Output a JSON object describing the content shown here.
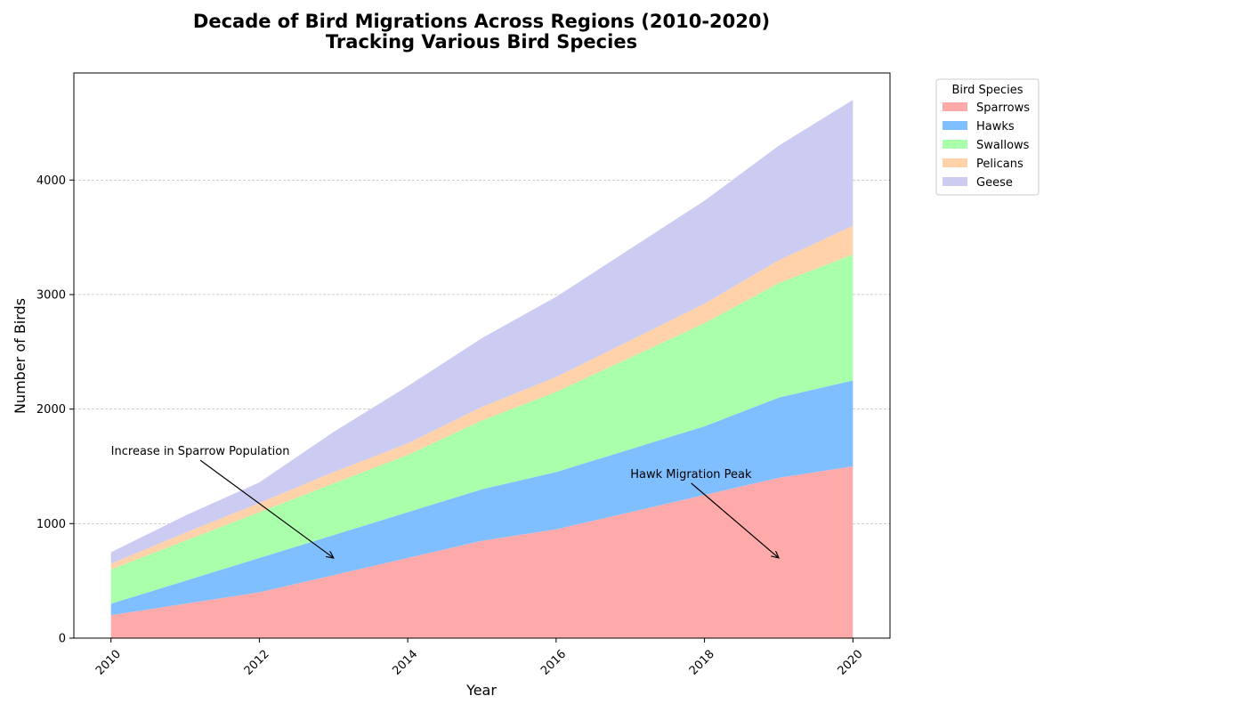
{
  "chart_data": {
    "type": "area",
    "stacked": true,
    "title_line1": "Decade of Bird Migrations Across Regions (2010-2020)",
    "title_line2": "Tracking Various Bird Species",
    "xlabel": "Year",
    "ylabel": "Number of Birds",
    "x": [
      2010,
      2011,
      2012,
      2013,
      2014,
      2015,
      2016,
      2017,
      2018,
      2019,
      2020
    ],
    "x_ticks": [
      "2010",
      "2012",
      "2014",
      "2016",
      "2018",
      "2020"
    ],
    "y_ticks": [
      "0",
      "1000",
      "2000",
      "3000",
      "4000"
    ],
    "xlim": [
      2009.5,
      2020.5
    ],
    "ylim": [
      0,
      4935
    ],
    "grid": "y-dashed",
    "legend_title": "Bird Species",
    "legend_position": "outside-top-right",
    "series": [
      {
        "name": "Sparrows",
        "color": "#ffaaaa",
        "values": [
          200,
          300,
          400,
          550,
          700,
          850,
          950,
          1100,
          1250,
          1400,
          1500
        ]
      },
      {
        "name": "Hawks",
        "color": "#80bfff",
        "values": [
          100,
          200,
          300,
          350,
          400,
          450,
          500,
          550,
          600,
          700,
          750
        ]
      },
      {
        "name": "Swallows",
        "color": "#aaffaa",
        "values": [
          300,
          350,
          400,
          450,
          500,
          600,
          700,
          800,
          900,
          1000,
          1100
        ]
      },
      {
        "name": "Pelicans",
        "color": "#ffd2aa",
        "values": [
          50,
          70,
          80,
          100,
          100,
          120,
          130,
          150,
          170,
          200,
          250
        ]
      },
      {
        "name": "Geese",
        "color": "#ccccf2",
        "values": [
          100,
          150,
          180,
          350,
          500,
          600,
          700,
          800,
          900,
          1000,
          1100
        ]
      }
    ],
    "annotations": [
      {
        "text": "Increase in Sparrow Population",
        "text_x": 2010,
        "text_y": 1600,
        "arrow_x": 2013,
        "arrow_y": 700
      },
      {
        "text": "Hawk Migration Peak",
        "text_x": 2017,
        "text_y": 1400,
        "arrow_x": 2019,
        "arrow_y": 700
      }
    ]
  }
}
